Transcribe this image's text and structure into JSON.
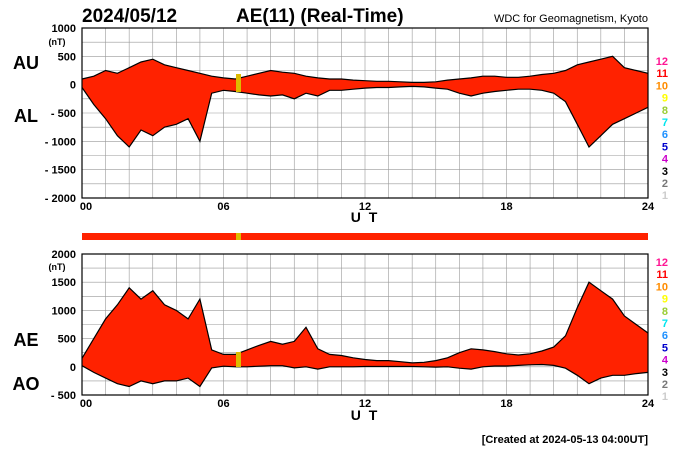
{
  "header": {
    "date": "2024/05/12",
    "title": "AE(11) (Real-Time)",
    "source": "WDC for Geomagnetism, Kyoto"
  },
  "footer": {
    "created": "[Created at 2024-05-13 04:00UT]"
  },
  "colors": {
    "fill": "#ff2200",
    "line": "#000000",
    "grid": "#999999",
    "bar": "#ff2200",
    "bar_highlight": "#ddbb00"
  },
  "station_legend": [
    {
      "label": "12",
      "color": "#ff1493"
    },
    {
      "label": "11",
      "color": "#ff0000"
    },
    {
      "label": "10",
      "color": "#ff8c00"
    },
    {
      "label": "9",
      "color": "#ffff00"
    },
    {
      "label": "8",
      "color": "#9acd32"
    },
    {
      "label": "7",
      "color": "#00e5ee"
    },
    {
      "label": "6",
      "color": "#1e90ff"
    },
    {
      "label": "5",
      "color": "#0000cd"
    },
    {
      "label": "4",
      "color": "#cc00cc"
    },
    {
      "label": "3",
      "color": "#000000"
    },
    {
      "label": "2",
      "color": "#777777"
    },
    {
      "label": "1",
      "color": "#cccccc"
    }
  ],
  "chart_data": [
    {
      "type": "area",
      "upper_label": "AU",
      "lower_label": "AL",
      "unit_label": "(nT)",
      "xlabel": "U T",
      "xlim": [
        0,
        24
      ],
      "xticks": [
        0,
        6,
        12,
        18,
        24
      ],
      "xtick_labels": [
        "00",
        "06",
        "12",
        "18",
        "24"
      ],
      "ylim": [
        -2000,
        1000
      ],
      "yticks": [
        1000,
        500,
        0,
        -500,
        -1000,
        -1500,
        -2000
      ],
      "ytick_labels": [
        "1000",
        "500",
        "0",
        "- 500",
        "- 1000",
        "- 1500",
        "- 2000"
      ],
      "grid": true,
      "series": [
        {
          "key": "AU",
          "x": [
            0,
            0.5,
            1,
            1.5,
            2,
            2.5,
            3,
            3.5,
            4,
            4.5,
            5,
            5.5,
            6,
            6.5,
            7,
            7.5,
            8,
            8.5,
            9,
            9.5,
            10,
            10.5,
            11,
            11.5,
            12,
            12.5,
            13,
            13.5,
            14,
            14.5,
            15,
            15.5,
            16,
            16.5,
            17,
            17.5,
            18,
            18.5,
            19,
            19.5,
            20,
            20.5,
            21,
            21.5,
            22,
            22.5,
            23,
            23.5,
            24
          ],
          "y": [
            100,
            150,
            250,
            200,
            300,
            400,
            450,
            350,
            300,
            250,
            200,
            150,
            120,
            100,
            150,
            200,
            250,
            220,
            200,
            150,
            120,
            100,
            100,
            80,
            70,
            60,
            60,
            50,
            40,
            40,
            50,
            80,
            100,
            120,
            150,
            150,
            130,
            130,
            150,
            180,
            200,
            250,
            350,
            400,
            450,
            500,
            300,
            250,
            200
          ]
        },
        {
          "key": "AL",
          "x": [
            0,
            0.5,
            1,
            1.5,
            2,
            2.5,
            3,
            3.5,
            4,
            4.5,
            5,
            5.5,
            6,
            6.5,
            7,
            7.5,
            8,
            8.5,
            9,
            9.5,
            10,
            10.5,
            11,
            11.5,
            12,
            12.5,
            13,
            13.5,
            14,
            14.5,
            15,
            15.5,
            16,
            16.5,
            17,
            17.5,
            18,
            18.5,
            19,
            19.5,
            20,
            20.5,
            21,
            21.5,
            22,
            22.5,
            23,
            23.5,
            24
          ],
          "y": [
            -50,
            -350,
            -600,
            -900,
            -1100,
            -800,
            -900,
            -750,
            -700,
            -600,
            -1000,
            -150,
            -100,
            -120,
            -150,
            -180,
            -200,
            -180,
            -250,
            -150,
            -200,
            -100,
            -100,
            -80,
            -60,
            -50,
            -50,
            -40,
            -30,
            -40,
            -60,
            -80,
            -150,
            -200,
            -150,
            -120,
            -100,
            -80,
            -80,
            -100,
            -150,
            -300,
            -700,
            -1100,
            -900,
            -700,
            -600,
            -500,
            -400
          ]
        }
      ]
    },
    {
      "type": "area",
      "upper_label": "AE",
      "lower_label": "AO",
      "unit_label": "(nT)",
      "xlabel": "U T",
      "xlim": [
        0,
        24
      ],
      "xticks": [
        0,
        6,
        12,
        18,
        24
      ],
      "xtick_labels": [
        "00",
        "06",
        "12",
        "18",
        "24"
      ],
      "ylim": [
        -500,
        2000
      ],
      "yticks": [
        2000,
        1500,
        1000,
        500,
        0,
        -500
      ],
      "ytick_labels": [
        "2000",
        "1500",
        "1000",
        "500",
        "0",
        "- 500"
      ],
      "grid": true,
      "series": [
        {
          "key": "AE",
          "x": [
            0,
            0.5,
            1,
            1.5,
            2,
            2.5,
            3,
            3.5,
            4,
            4.5,
            5,
            5.5,
            6,
            6.5,
            7,
            7.5,
            8,
            8.5,
            9,
            9.5,
            10,
            10.5,
            11,
            11.5,
            12,
            12.5,
            13,
            13.5,
            14,
            14.5,
            15,
            15.5,
            16,
            16.5,
            17,
            17.5,
            18,
            18.5,
            19,
            19.5,
            20,
            20.5,
            21,
            21.5,
            22,
            22.5,
            23,
            23.5,
            24
          ],
          "y": [
            150,
            500,
            850,
            1100,
            1400,
            1200,
            1350,
            1100,
            1000,
            850,
            1200,
            300,
            220,
            220,
            300,
            380,
            450,
            400,
            450,
            700,
            320,
            220,
            200,
            160,
            130,
            110,
            110,
            90,
            70,
            80,
            110,
            160,
            250,
            320,
            300,
            270,
            230,
            210,
            230,
            280,
            350,
            550,
            1050,
            1500,
            1350,
            1200,
            900,
            750,
            600
          ]
        },
        {
          "key": "AO",
          "x": [
            0,
            0.5,
            1,
            1.5,
            2,
            2.5,
            3,
            3.5,
            4,
            4.5,
            5,
            5.5,
            6,
            6.5,
            7,
            7.5,
            8,
            8.5,
            9,
            9.5,
            10,
            10.5,
            11,
            11.5,
            12,
            12.5,
            13,
            13.5,
            14,
            14.5,
            15,
            15.5,
            16,
            16.5,
            17,
            17.5,
            18,
            18.5,
            19,
            19.5,
            20,
            20.5,
            21,
            21.5,
            22,
            22.5,
            23,
            23.5,
            24
          ],
          "y": [
            20,
            -100,
            -200,
            -300,
            -350,
            -250,
            -300,
            -250,
            -250,
            -200,
            -350,
            -20,
            10,
            0,
            0,
            10,
            20,
            20,
            -20,
            0,
            -40,
            0,
            0,
            0,
            5,
            5,
            5,
            5,
            5,
            0,
            -5,
            0,
            -25,
            -40,
            0,
            15,
            15,
            25,
            35,
            40,
            25,
            -25,
            -150,
            -300,
            -200,
            -150,
            -150,
            -120,
            -100
          ]
        }
      ]
    }
  ]
}
